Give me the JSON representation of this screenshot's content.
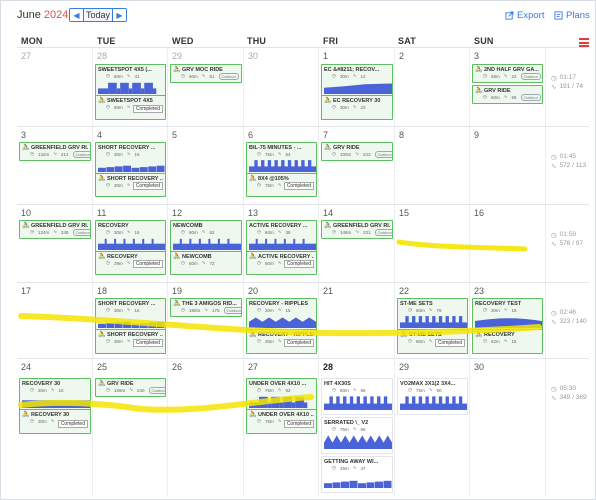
{
  "header": {
    "month": "June",
    "year": "2024",
    "today_label": "Today",
    "prev_icon": "chevron-left-icon",
    "next_icon": "chevron-right-icon",
    "export_label": "Export",
    "plans_label": "Plans"
  },
  "days": [
    "MON",
    "TUE",
    "WED",
    "THU",
    "FRI",
    "SAT",
    "SUN"
  ],
  "weeks": [
    {
      "dates": [
        "27",
        "28",
        "29",
        "30",
        "1",
        "2",
        "3"
      ],
      "summary": {
        "time": "01:17",
        "load": "191 / 74"
      }
    },
    {
      "dates": [
        "3",
        "4",
        "5",
        "6",
        "7",
        "8",
        "9"
      ],
      "summary": {
        "time": "01:45",
        "load": "572 / 113"
      }
    },
    {
      "dates": [
        "10",
        "11",
        "12",
        "13",
        "14",
        "15",
        "16"
      ],
      "summary": {
        "time": "01:59",
        "load": "578 / 97"
      }
    },
    {
      "dates": [
        "17",
        "18",
        "19",
        "20",
        "21",
        "22",
        "23"
      ],
      "summary": {
        "time": "02:46",
        "load": "323 / 140"
      }
    },
    {
      "dates": [
        "24",
        "25",
        "26",
        "27",
        "28",
        "29",
        "30"
      ],
      "summary": {
        "time": "05:30",
        "load": "349 / 369"
      }
    }
  ],
  "cards": {
    "w1tue_plan": {
      "title": "SWEETSPOT 4X5 (...",
      "m1": "60m",
      "m2": "41"
    },
    "w1tue_done": {
      "title": "SWEETSPOT 4X5",
      "m1": "60m",
      "m2": "50"
    },
    "w1wed": {
      "title": "GRV MOC RIDE",
      "m1": "60m",
      "m2": "51",
      "box": "Outdoor"
    },
    "w1fri_plan": {
      "title": "EC &#8211; RECOV...",
      "m1": "30m",
      "m2": "12"
    },
    "w1fri_done": {
      "title": "EC RECOVERY 30",
      "m1": "30m",
      "m2": "23"
    },
    "w1sun_a": {
      "title": "2ND HALF GRV GA...",
      "m1": "58m",
      "m2": "22",
      "box": "Outdoor"
    },
    "w1sun_b": {
      "title": "GRV RIDE",
      "m1": "60m",
      "m2": "56",
      "box": "Outdoor"
    },
    "w2mon": {
      "title": "GREENFIELD GRV RI...",
      "m1": "132m",
      "m2": "214",
      "box": "Outdoor"
    },
    "w2tue_plan": {
      "title": "SHORT RECOVERY ...",
      "m1": "30m",
      "m2": "16"
    },
    "w2tue_done": {
      "title": "SHORT RECOVERY ...",
      "m1": "30m",
      "m2": "15"
    },
    "w2thu_plan": {
      "title": "BIL-75 MINUTES - ...",
      "m1": "75m",
      "m2": "64"
    },
    "w2thu_done": {
      "title": "8X4 @105%",
      "m1": "75m",
      "m2": "96"
    },
    "w2fri": {
      "title": "GRV RIDE",
      "m1": "100m",
      "m2": "243",
      "box": "Outdoor"
    },
    "w3mon": {
      "title": "GREENFIELD GRV RI...",
      "m1": "124m",
      "m2": "245",
      "box": "Outdoor"
    },
    "w3tue_plan": {
      "title": "RECOVERY",
      "m1": "30m",
      "m2": "16"
    },
    "w3tue_done": {
      "title": "RECOVERY",
      "m1": "29m",
      "m2": "15"
    },
    "w3wed_plan": {
      "title": "NEWCOMB",
      "m1": "60m",
      "m2": "62"
    },
    "w3wed_done": {
      "title": "NEWCOMB",
      "m1": "60m",
      "m2": "72"
    },
    "w3thu_plan": {
      "title": "ACTIVE RECOVERY ...",
      "m1": "60m",
      "m2": "36"
    },
    "w3thu_done": {
      "title": "ACTIVE RECOVERY ...",
      "m1": "60m",
      "m2": "40"
    },
    "w3fri": {
      "title": "GREENFIELD GRV RI...",
      "m1": "146m",
      "m2": "231",
      "box": "Outdoor"
    },
    "w4tue_plan": {
      "title": "SHORT RECOVERY ...",
      "m1": "30m",
      "m2": "16"
    },
    "w4tue_done": {
      "title": "SHORT RECOVERY ...",
      "m1": "30m",
      "m2": "20"
    },
    "w4wed": {
      "title": "THE 3 AMIGOS RID...",
      "m1": "180m",
      "m2": "175",
      "box": "Outdoor"
    },
    "w4thu_plan": {
      "title": "RECOVERY - RIPPLES",
      "m1": "30m",
      "m2": "15"
    },
    "w4thu_done": {
      "title": "RECOVERY - RIPPLES",
      "m1": "30m",
      "m2": "21"
    },
    "w4sat_plan": {
      "title": "ST-ME SETS",
      "m1": "60m",
      "m2": "76"
    },
    "w4sat_done": {
      "title": "ST-ME SETS",
      "m1": "60m",
      "m2": "81"
    },
    "w4sun_plan": {
      "title": "RECOVERY TEST",
      "m1": "30m",
      "m2": "18"
    },
    "w4sun_done": {
      "title": "RECOVERY",
      "m1": "62m",
      "m2": "15"
    },
    "w5mon_plan": {
      "title": "RECOVERY 30",
      "m1": "30m",
      "m2": "15"
    },
    "w5mon_done": {
      "title": "RECOVERY 30",
      "m1": "30m",
      "m2": "15"
    },
    "w5tue": {
      "title": "GRV RIDE",
      "m1": "159m",
      "m2": "240",
      "box": "Outdoor"
    },
    "w5thu_plan": {
      "title": "UNDER OVER 4X10 ...",
      "m1": "75m",
      "m2": "92"
    },
    "w5thu_done": {
      "title": "UNDER OVER 4X10 ...",
      "m1": "75m",
      "m2": "94"
    },
    "w5fri_a": {
      "title": "HIT 4X30S",
      "m1": "60m",
      "m2": "56"
    },
    "w5fri_b": {
      "title": "SERRATED \\_ V2",
      "m1": "75m",
      "m2": "66"
    },
    "w5fri_c": {
      "title": "GETTING AWAY WI...",
      "m1": "45m",
      "m2": "47"
    },
    "w5sat": {
      "title": "VO2MAX 3X1(2 3X4...",
      "m1": "75m",
      "m2": "90"
    }
  },
  "completed_label": "Completed",
  "colors": {
    "accent": "#3a7bd5",
    "card_border": "#5fbf60",
    "card_bg": "#eef8ee",
    "workout": "#4a63d8",
    "highlight": "#f5e400",
    "year": "#d9534f"
  }
}
